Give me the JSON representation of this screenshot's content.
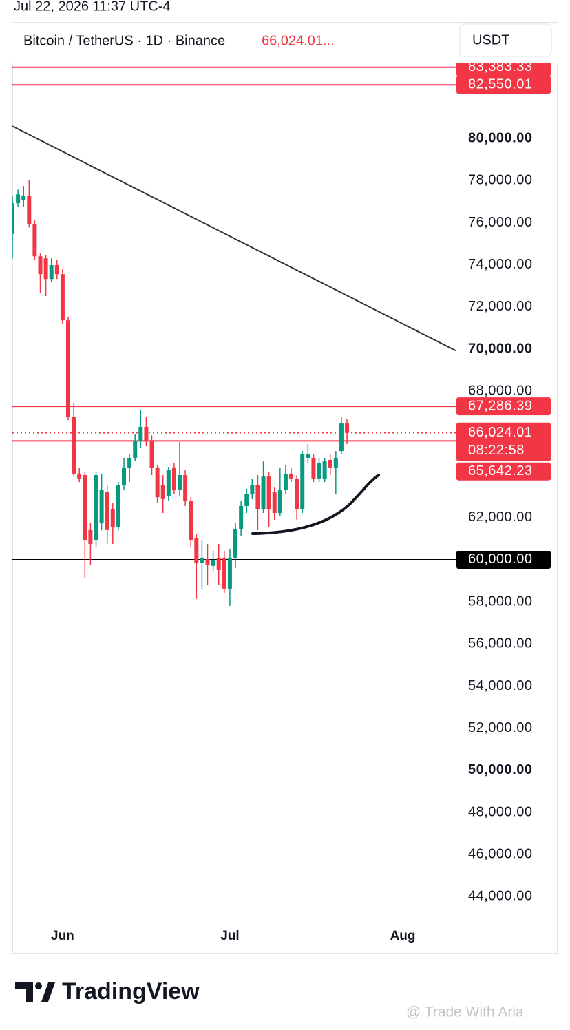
{
  "timestamp": "Jul 22, 2026 11:37 UTC-4",
  "chart_data": {
    "type": "candlestick",
    "title": "Bitcoin / TetherUS · 1D · Binance",
    "last_price_label": "66,024.01...",
    "currency": "USDT",
    "up_color": "#089981",
    "down_color": "#f23645",
    "open": [
      75460,
      76930,
      77090,
      77260,
      75950,
      74410,
      74310,
      73330,
      73990,
      73560,
      71370,
      66800,
      64090,
      64020,
      61410,
      60920,
      61730,
      63200,
      62390,
      61570,
      63530,
      64350,
      64840,
      65650,
      66310,
      65650,
      64350,
      63530,
      63040,
      64350,
      63300,
      64020,
      62780,
      61010,
      59840,
      60030,
      59710,
      60100,
      60100,
      58630,
      60100,
      61470,
      62550,
      63110,
      63530,
      62390,
      63950,
      63200,
      62220,
      63300,
      64090,
      63860,
      62390,
      64840,
      64840,
      63860,
      63860,
      64740,
      64350,
      65160,
      66470
    ],
    "high": [
      77260,
      77580,
      77750,
      78010,
      76110,
      74540,
      74480,
      74310,
      74220,
      73820,
      71540,
      67450,
      64350,
      64180,
      61730,
      64180,
      64090,
      63530,
      62710,
      63690,
      64840,
      65000,
      65980,
      67120,
      66800,
      65910,
      64510,
      64020,
      64410,
      64610,
      65590,
      64280,
      62970,
      61240,
      60920,
      60750,
      60430,
      60750,
      60430,
      60490,
      61730,
      62780,
      63370,
      63860,
      64020,
      64670,
      64180,
      63430,
      64350,
      64510,
      64350,
      64020,
      65160,
      65490,
      65000,
      64840,
      64840,
      65000,
      65160,
      66800,
      66700
    ],
    "low": [
      74310,
      76770,
      76770,
      75780,
      74220,
      72680,
      72520,
      73170,
      73330,
      71210,
      66630,
      63950,
      63690,
      59120,
      59770,
      60590,
      61410,
      60750,
      60750,
      61410,
      63300,
      63690,
      64670,
      65330,
      65390,
      64020,
      62710,
      62220,
      62780,
      63110,
      63040,
      62550,
      60590,
      58140,
      58630,
      58790,
      59440,
      58790,
      58400,
      57810,
      59610,
      61140,
      62220,
      62880,
      61410,
      62220,
      61570,
      61900,
      62060,
      63110,
      63690,
      61900,
      62220,
      64610,
      63690,
      63690,
      63690,
      64020,
      63110,
      65000,
      65490
    ],
    "close": [
      76930,
      77350,
      77260,
      75950,
      74410,
      73560,
      73330,
      73990,
      73560,
      71370,
      66800,
      64090,
      63860,
      60920,
      60750,
      64020,
      63300,
      61410,
      61570,
      63530,
      64350,
      64840,
      65650,
      66310,
      65650,
      64350,
      62970,
      62880,
      64280,
      63300,
      64020,
      62780,
      60920,
      59840,
      60100,
      59770,
      59970,
      59510,
      58630,
      60100,
      61470,
      62550,
      63110,
      63530,
      62390,
      63950,
      62390,
      62220,
      63300,
      64090,
      63860,
      62390,
      65000,
      65000,
      63860,
      64610,
      64670,
      64350,
      64840,
      66470,
      66024.01
    ],
    "xlim": [
      0,
      79.5
    ],
    "xticks": [
      {
        "value": 9,
        "label": "Jun"
      },
      {
        "value": 39,
        "label": "Jul"
      },
      {
        "value": 70,
        "label": "Aug"
      }
    ],
    "ylim": [
      42900,
      85500
    ],
    "yticks": [
      {
        "value": 44000,
        "label": "44,000.00"
      },
      {
        "value": 46000,
        "label": "46,000.00"
      },
      {
        "value": 48000,
        "label": "48,000.00"
      },
      {
        "value": 50000,
        "label": "50,000.00"
      },
      {
        "value": 52000,
        "label": "52,000.00"
      },
      {
        "value": 54000,
        "label": "54,000.00"
      },
      {
        "value": 56000,
        "label": "56,000.00"
      },
      {
        "value": 58000,
        "label": "58,000.00"
      },
      {
        "value": 62000,
        "label": "62,000.00"
      },
      {
        "value": 68000,
        "label": "68,000.00"
      },
      {
        "value": 70000,
        "label": "70,000.00"
      },
      {
        "value": 72000,
        "label": "72,000.00"
      },
      {
        "value": 74000,
        "label": "74,000.00"
      },
      {
        "value": 76000,
        "label": "76,000.00"
      },
      {
        "value": 78000,
        "label": "78,000.00"
      },
      {
        "value": 80000,
        "label": "80,000.00"
      }
    ],
    "levels": [
      {
        "value": 83383.33,
        "label": "83,383.33",
        "color": "#f23645"
      },
      {
        "value": 82550.01,
        "label": "82,550.01",
        "color": "#f23645"
      },
      {
        "value": 67286.39,
        "label": "67,286.39",
        "color": "#f23645"
      },
      {
        "value": 65642.23,
        "label": "65,642.23",
        "color": "#f23645"
      },
      {
        "value": 60000,
        "label": "60,000.00",
        "color": "#000000"
      }
    ],
    "last_price": {
      "value": 66024.01,
      "label": "66,024.01",
      "countdown": "08:22:58",
      "color": "#f23645"
    },
    "trend_line": {
      "x": [
        0,
        79.5
      ],
      "y": [
        80590,
        69930
      ],
      "color": "#333333"
    }
  },
  "branding": "TradingView",
  "watermark": "@ Trade With Aria"
}
